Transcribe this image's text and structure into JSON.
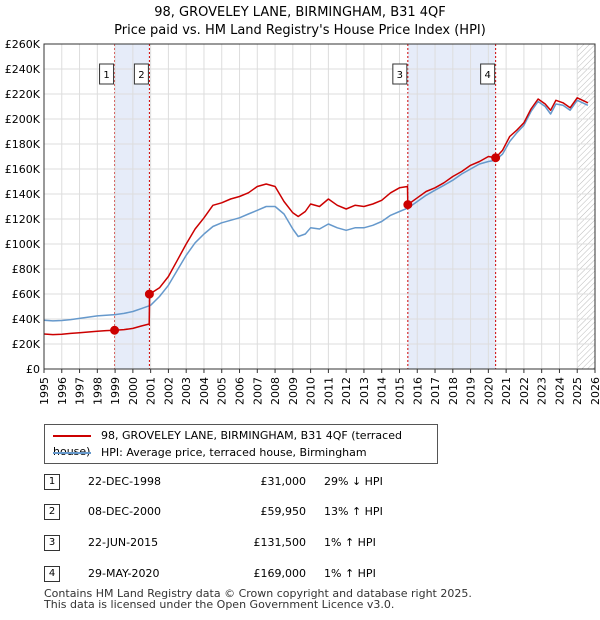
{
  "chart_data": {
    "type": "line",
    "title_line1": "98, GROVELEY LANE, BIRMINGHAM, B31 4QF",
    "title_line2": "Price paid vs. HM Land Registry's House Price Index (HPI)",
    "xlim": [
      1995,
      2026
    ],
    "ylim": [
      0,
      260000
    ],
    "yticks": [
      0,
      20000,
      40000,
      60000,
      80000,
      100000,
      120000,
      140000,
      160000,
      180000,
      200000,
      220000,
      240000,
      260000
    ],
    "ytick_labels": [
      "£0",
      "£20K",
      "£40K",
      "£60K",
      "£80K",
      "£100K",
      "£120K",
      "£140K",
      "£160K",
      "£180K",
      "£200K",
      "£220K",
      "£240K",
      "£260K"
    ],
    "xticks": [
      1995,
      1996,
      1997,
      1998,
      1999,
      2000,
      2001,
      2002,
      2003,
      2004,
      2005,
      2006,
      2007,
      2008,
      2009,
      2010,
      2011,
      2012,
      2013,
      2014,
      2015,
      2016,
      2017,
      2018,
      2019,
      2020,
      2021,
      2022,
      2023,
      2024,
      2025,
      2026
    ],
    "xtick_labels": [
      "1995",
      "1996",
      "1997",
      "1998",
      "1999",
      "2000",
      "2001",
      "2002",
      "2003",
      "2004",
      "2005",
      "2006",
      "2007",
      "2008",
      "2009",
      "2010",
      "2011",
      "2012",
      "2013",
      "2014",
      "2015",
      "2016",
      "2017",
      "2018",
      "2019",
      "2020",
      "2021",
      "2022",
      "2023",
      "2024",
      "2025",
      "2026"
    ],
    "grid": true,
    "shaded_ranges": [
      [
        1998.97,
        2000.93
      ],
      [
        2015.47,
        2020.41
      ]
    ],
    "future_hatch_from": 2025.0,
    "series": [
      {
        "name": "98, GROVELEY LANE, BIRMINGHAM, B31 4QF (terraced house)",
        "color": "#cc0000",
        "x": [
          1995.0,
          1995.5,
          1996.0,
          1996.5,
          1997.0,
          1997.5,
          1998.0,
          1998.5,
          1998.97,
          1999.5,
          2000.0,
          2000.5,
          2000.92,
          2000.94,
          2001.5,
          2002.0,
          2002.5,
          2003.0,
          2003.5,
          2004.0,
          2004.5,
          2005.0,
          2005.5,
          2006.0,
          2006.5,
          2007.0,
          2007.5,
          2008.0,
          2008.5,
          2009.0,
          2009.3,
          2009.7,
          2010.0,
          2010.5,
          2011.0,
          2011.5,
          2012.0,
          2012.5,
          2013.0,
          2013.5,
          2014.0,
          2014.5,
          2015.0,
          2015.45,
          2015.47,
          2016.0,
          2016.5,
          2017.0,
          2017.5,
          2018.0,
          2018.5,
          2019.0,
          2019.5,
          2020.0,
          2020.41,
          2020.8,
          2021.2,
          2021.6,
          2022.0,
          2022.4,
          2022.8,
          2023.2,
          2023.5,
          2023.8,
          2024.2,
          2024.6,
          2025.0,
          2025.3,
          2025.6
        ],
        "values": [
          28000,
          27500,
          27800,
          28500,
          29000,
          29600,
          30200,
          30700,
          31000,
          31500,
          32500,
          34500,
          36000,
          59950,
          65000,
          74000,
          87000,
          100000,
          112000,
          121000,
          131000,
          133000,
          136000,
          138000,
          141000,
          146000,
          148000,
          146000,
          134000,
          125000,
          122000,
          126000,
          132000,
          130000,
          136000,
          131000,
          128000,
          131000,
          130000,
          132000,
          135000,
          141000,
          145000,
          146000,
          131500,
          137000,
          142000,
          145000,
          149000,
          154000,
          158000,
          163000,
          166000,
          170000,
          169000,
          175000,
          186000,
          191000,
          197000,
          208000,
          216000,
          212000,
          207000,
          215000,
          213000,
          209000,
          217000,
          215000,
          213000
        ]
      },
      {
        "name": "HPI: Average price, terraced house, Birmingham",
        "color": "#6699cc",
        "x": [
          1995.0,
          1995.5,
          1996.0,
          1996.5,
          1997.0,
          1997.5,
          1998.0,
          1998.5,
          1999.0,
          1999.5,
          2000.0,
          2000.5,
          2001.0,
          2001.5,
          2002.0,
          2002.5,
          2003.0,
          2003.5,
          2004.0,
          2004.5,
          2005.0,
          2005.5,
          2006.0,
          2006.5,
          2007.0,
          2007.5,
          2008.0,
          2008.5,
          2009.0,
          2009.3,
          2009.7,
          2010.0,
          2010.5,
          2011.0,
          2011.5,
          2012.0,
          2012.5,
          2013.0,
          2013.5,
          2014.0,
          2014.5,
          2015.0,
          2015.5,
          2016.0,
          2016.5,
          2017.0,
          2017.5,
          2018.0,
          2018.5,
          2019.0,
          2019.5,
          2020.0,
          2020.4,
          2020.8,
          2021.2,
          2021.6,
          2022.0,
          2022.4,
          2022.8,
          2023.2,
          2023.5,
          2023.8,
          2024.2,
          2024.6,
          2025.0,
          2025.3,
          2025.6
        ],
        "values": [
          39000,
          38500,
          38800,
          39500,
          40500,
          41500,
          42500,
          43000,
          43500,
          44500,
          46000,
          48500,
          51000,
          58000,
          67000,
          79000,
          91000,
          101000,
          108000,
          114000,
          117000,
          119000,
          121000,
          124000,
          127000,
          130000,
          130000,
          124000,
          112000,
          106000,
          108000,
          113000,
          112000,
          116000,
          113000,
          111000,
          113000,
          113000,
          115000,
          118000,
          123000,
          126000,
          129000,
          134000,
          139000,
          143000,
          147000,
          151000,
          156000,
          160000,
          164000,
          166000,
          167000,
          172000,
          182000,
          189000,
          195000,
          206000,
          214000,
          210000,
          204000,
          212000,
          211000,
          207000,
          215000,
          213000,
          211000
        ]
      }
    ],
    "sales": [
      {
        "label": "1",
        "x": 1998.97,
        "value": 31000
      },
      {
        "label": "2",
        "x": 2000.93,
        "value": 59950
      },
      {
        "label": "3",
        "x": 2015.47,
        "value": 131500
      },
      {
        "label": "4",
        "x": 2020.41,
        "value": 169000
      }
    ]
  },
  "legend": {
    "property_label": "98, GROVELEY LANE, BIRMINGHAM, B31 4QF (terraced house)",
    "hpi_label": "HPI: Average price, terraced house, Birmingham"
  },
  "transactions": [
    {
      "num": "1",
      "date": "22-DEC-1998",
      "price": "£31,000",
      "hpi": "29% ↓ HPI"
    },
    {
      "num": "2",
      "date": "08-DEC-2000",
      "price": "£59,950",
      "hpi": "13% ↑ HPI"
    },
    {
      "num": "3",
      "date": "22-JUN-2015",
      "price": "£131,500",
      "hpi": "1% ↑ HPI"
    },
    {
      "num": "4",
      "date": "29-MAY-2020",
      "price": "£169,000",
      "hpi": "1% ↑ HPI"
    }
  ],
  "footer": {
    "line1": "Contains HM Land Registry data © Crown copyright and database right 2025.",
    "line2": "This data is licensed under the Open Government Licence v3.0."
  }
}
